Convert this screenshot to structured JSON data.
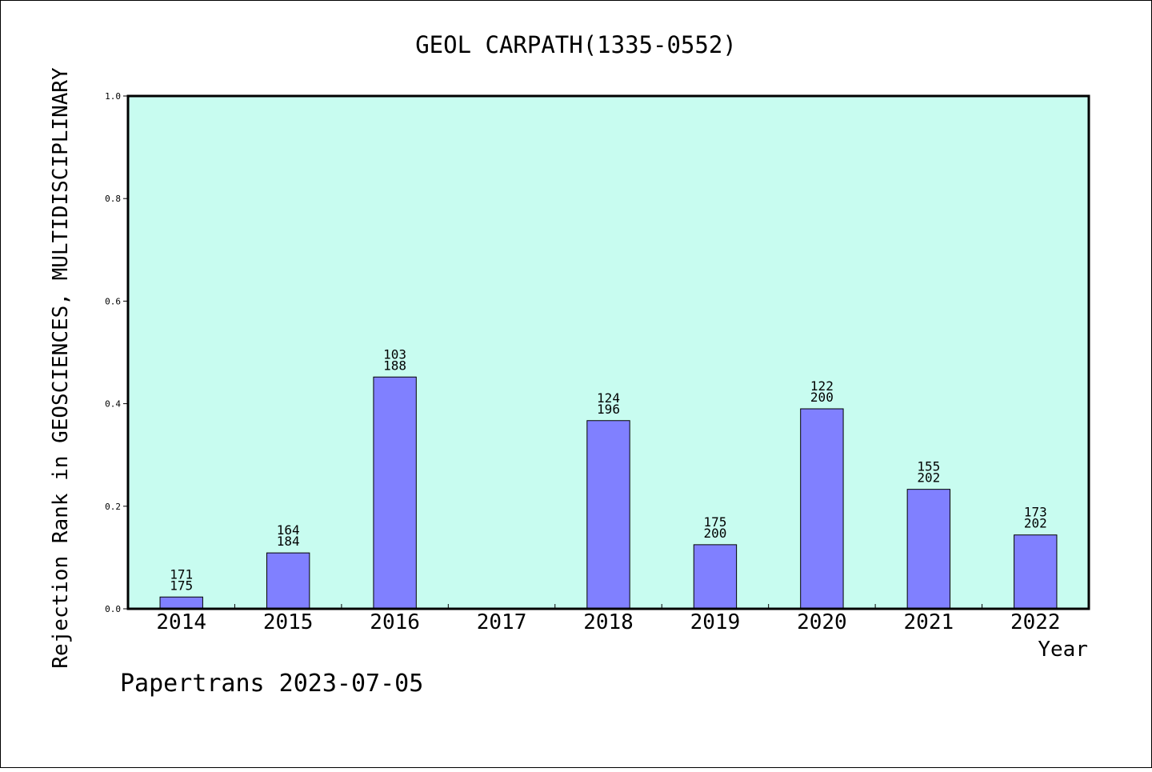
{
  "chart_data": {
    "type": "bar",
    "title": "GEOL CARPATH(1335-0552)",
    "ylabel": "Rejection Rank in GEOSCIENCES, MULTIDISCIPLINARY",
    "xlabel": "Year",
    "ylim": [
      0,
      1.0
    ],
    "yticks": [
      "0.0",
      "0.2",
      "0.4",
      "0.6",
      "0.8",
      "1.0"
    ],
    "grid": false,
    "legend": "none",
    "categories": [
      "2014",
      "2015",
      "2016",
      "2017",
      "2018",
      "2019",
      "2020",
      "2021",
      "2022"
    ],
    "values": [
      0.023,
      0.109,
      0.452,
      null,
      0.367,
      0.125,
      0.39,
      0.233,
      0.144
    ],
    "label_top": [
      "171",
      "164",
      "103",
      "",
      "124",
      "175",
      "122",
      "155",
      "173"
    ],
    "label_bottom": [
      "175",
      "184",
      "188",
      "",
      "196",
      "200",
      "200",
      "202",
      "202"
    ],
    "colors": {
      "plot_background": "#c8fcf0",
      "bar_fill": "#8080ff",
      "bar_stroke": "#000000"
    }
  },
  "footer": {
    "text": "Papertrans 2023-07-05"
  }
}
